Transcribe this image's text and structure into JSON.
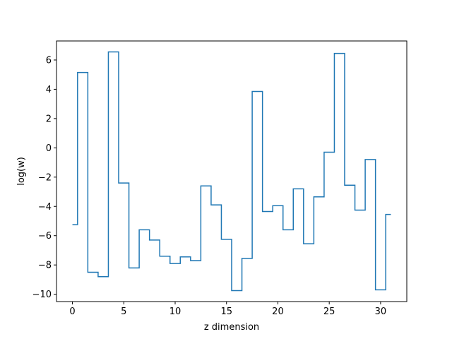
{
  "chart_data": {
    "type": "line",
    "drawstyle": "steps-mid",
    "title": "",
    "xlabel": "z dimension",
    "ylabel": "log(w)",
    "xlim": [
      -1.55,
      32.55
    ],
    "ylim": [
      -10.5,
      7.3
    ],
    "xticks": [
      0,
      5,
      10,
      15,
      20,
      25,
      30
    ],
    "xtick_labels": [
      "0",
      "5",
      "10",
      "15",
      "20",
      "25",
      "30"
    ],
    "yticks": [
      -10,
      -8,
      -6,
      -4,
      -2,
      0,
      2,
      4,
      6
    ],
    "ytick_labels": [
      "−10",
      "−8",
      "−6",
      "−4",
      "−2",
      "0",
      "2",
      "4",
      "6"
    ],
    "grid": false,
    "series": [
      {
        "color": "#1f77b4",
        "x": [
          0,
          1,
          2,
          3,
          4,
          5,
          6,
          7,
          8,
          9,
          10,
          11,
          12,
          13,
          14,
          15,
          16,
          17,
          18,
          19,
          20,
          21,
          22,
          23,
          24,
          25,
          26,
          27,
          28,
          29,
          30,
          31
        ],
        "y": [
          -5.25,
          5.15,
          -8.5,
          -8.8,
          6.55,
          -2.4,
          -8.2,
          -5.6,
          -6.3,
          -7.4,
          -7.9,
          -7.45,
          -7.7,
          -2.6,
          -3.9,
          -6.25,
          -9.75,
          -7.55,
          3.85,
          -4.35,
          -3.95,
          -5.6,
          -2.8,
          -6.55,
          -3.35,
          -0.3,
          6.45,
          -2.55,
          -4.25,
          -0.8,
          -9.7,
          -4.55
        ]
      }
    ]
  }
}
